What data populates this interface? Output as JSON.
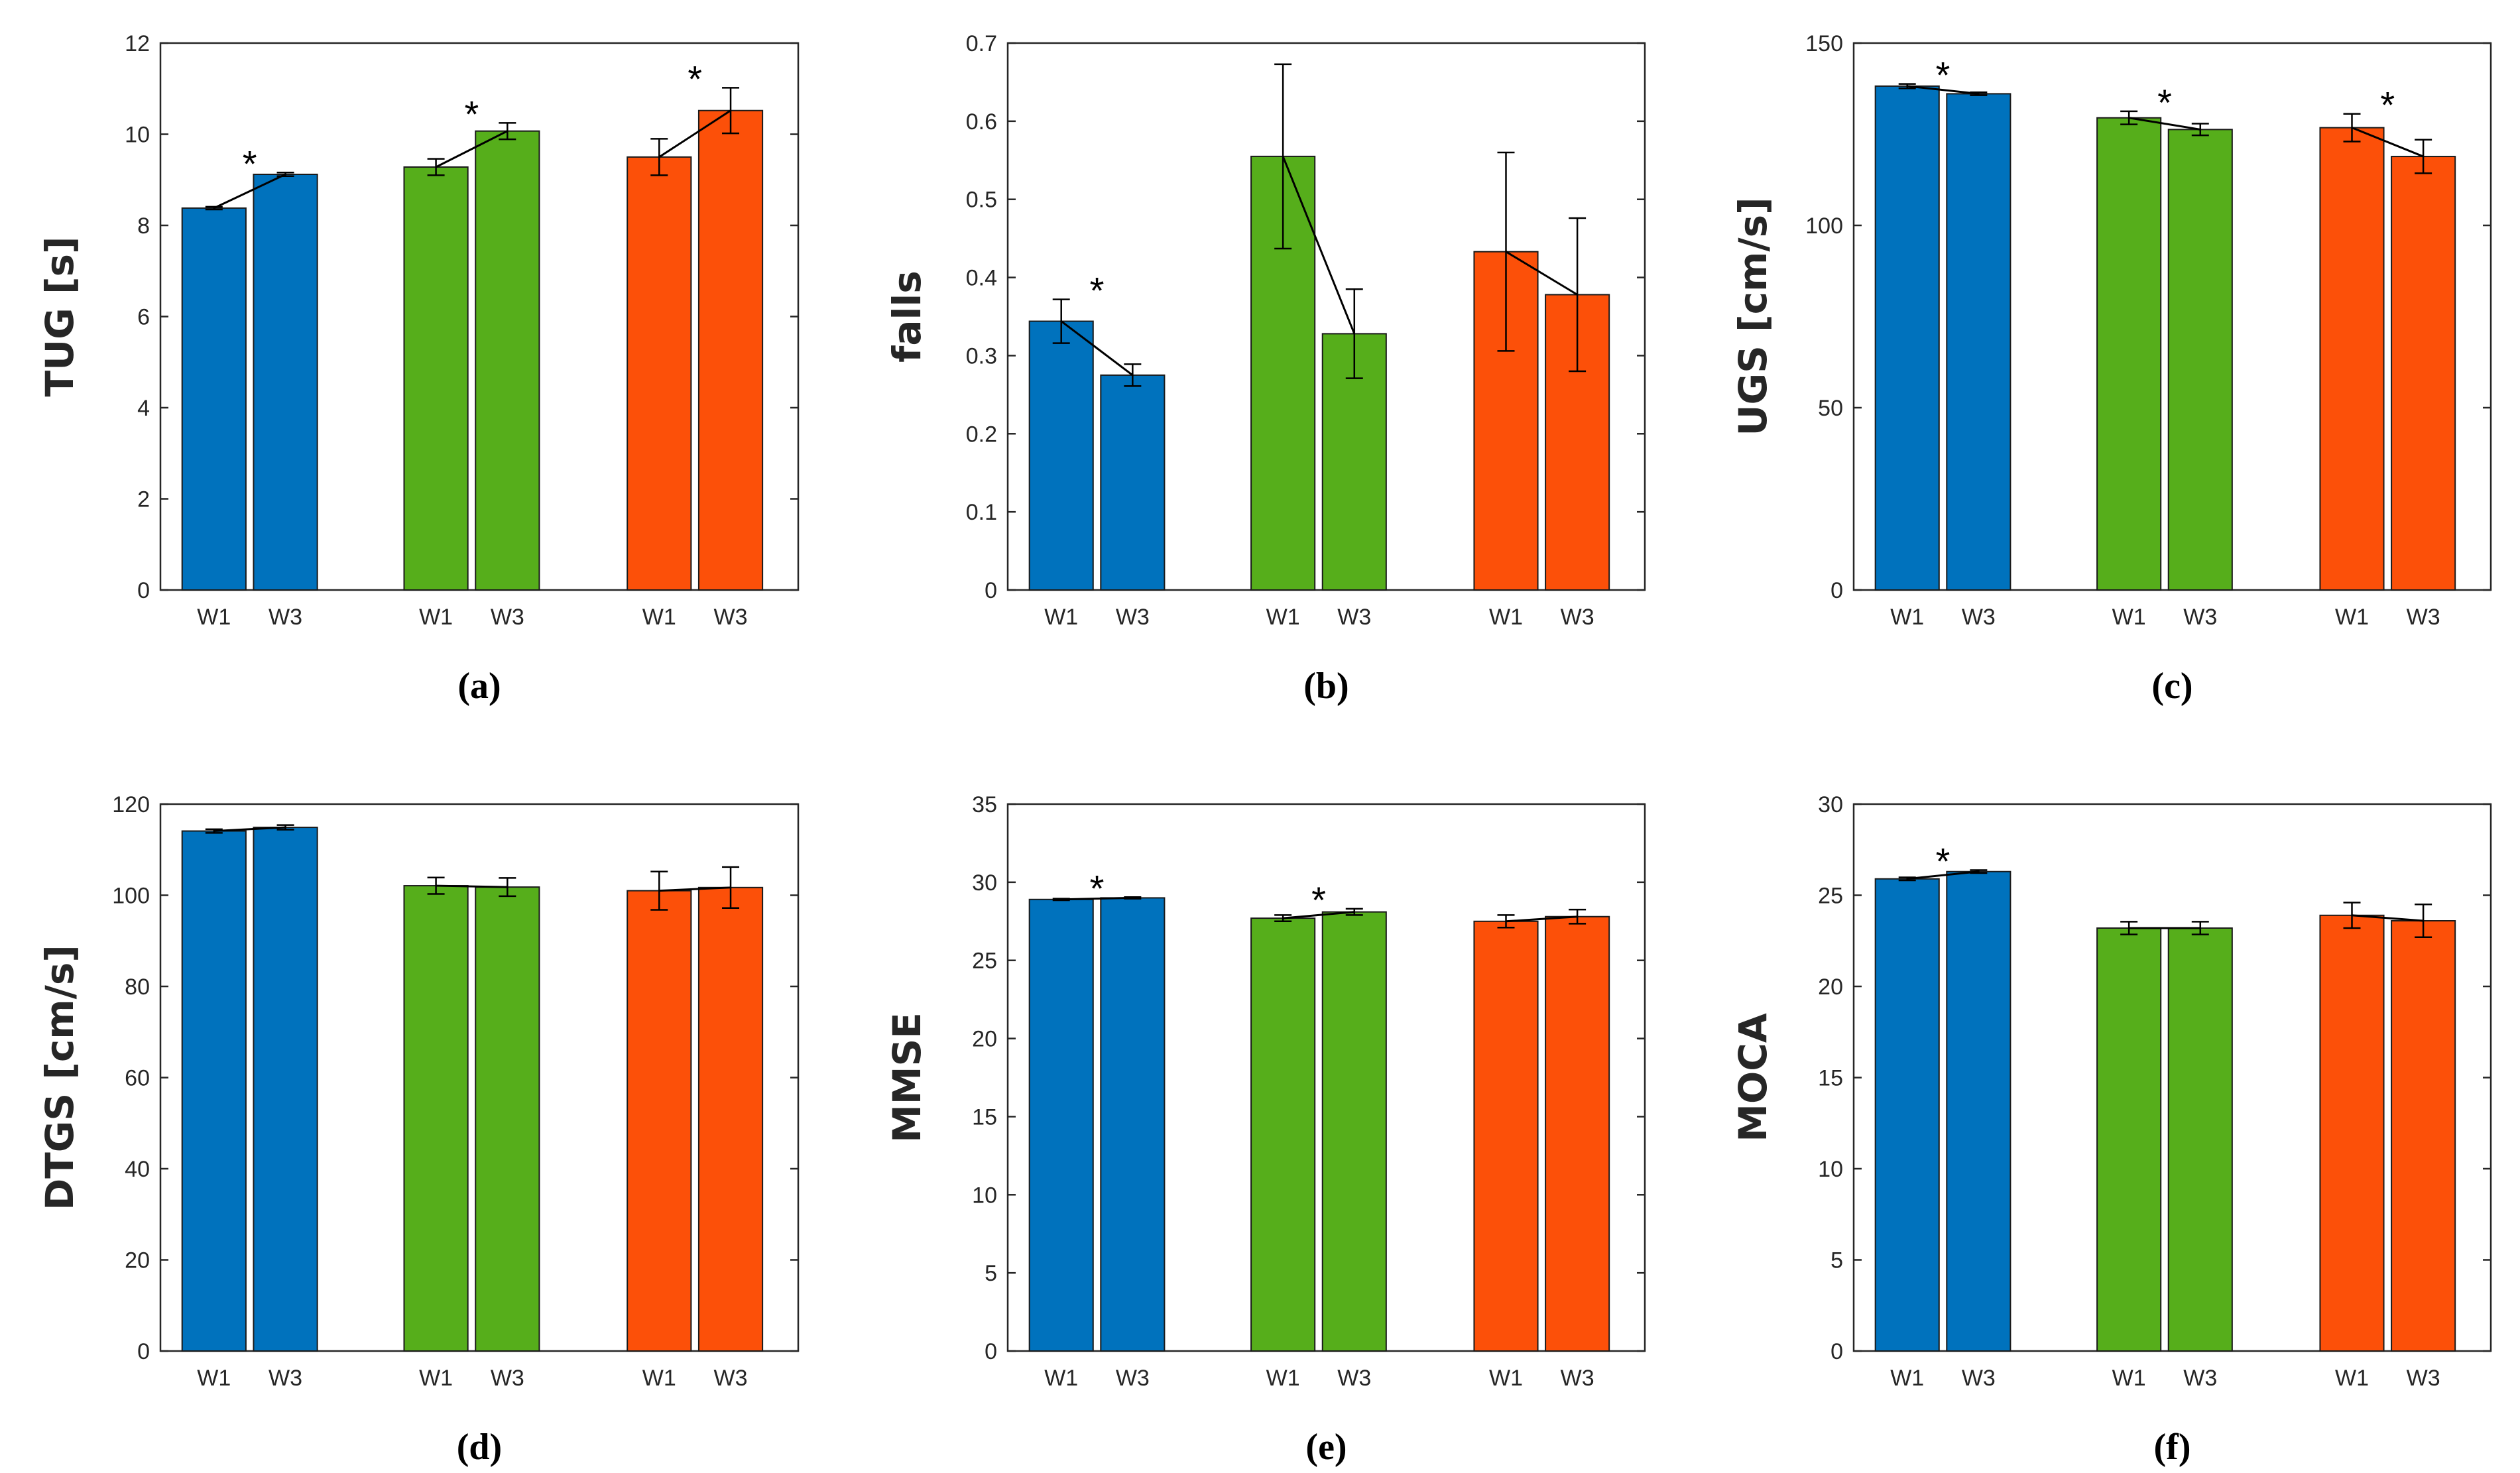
{
  "colors": {
    "group1": "#0072BD",
    "group2": "#56AE1B",
    "group3": "#FC5009",
    "axis": "#262626",
    "line": "#000000"
  },
  "star_symbol": "*",
  "chart_data": [
    {
      "type": "bar",
      "caption": "(a)",
      "ylabel": "TUG [s]",
      "ylim": [
        0,
        12
      ],
      "yticks": [
        0,
        2,
        4,
        6,
        8,
        10,
        12
      ],
      "categories": [
        "W1",
        "W3",
        "W1",
        "W3",
        "W1",
        "W3"
      ],
      "groups": [
        {
          "w1": 8.38,
          "w3": 9.12,
          "err1": 0.03,
          "err3": 0.04,
          "star": true
        },
        {
          "w1": 9.28,
          "w3": 10.07,
          "err1": 0.18,
          "err3": 0.18,
          "star": true
        },
        {
          "w1": 9.5,
          "w3": 10.52,
          "err1": 0.4,
          "err3": 0.5,
          "star": true
        }
      ]
    },
    {
      "type": "bar",
      "caption": "(b)",
      "ylabel": "falls",
      "ylim": [
        0,
        0.7
      ],
      "yticks": [
        0,
        0.1,
        0.2,
        0.3,
        0.4,
        0.5,
        0.6,
        0.7
      ],
      "categories": [
        "W1",
        "W3",
        "W1",
        "W3",
        "W1",
        "W3"
      ],
      "groups": [
        {
          "w1": 0.344,
          "w3": 0.275,
          "err1": 0.028,
          "err3": 0.014,
          "star": true
        },
        {
          "w1": 0.555,
          "w3": 0.328,
          "err1": 0.118,
          "err3": 0.057,
          "star": false
        },
        {
          "w1": 0.433,
          "w3": 0.378,
          "err1": 0.127,
          "err3": 0.098,
          "star": false
        }
      ]
    },
    {
      "type": "bar",
      "caption": "(c)",
      "ylabel": "UGS [cm/s]",
      "ylim": [
        0,
        150
      ],
      "yticks": [
        0,
        50,
        100,
        150
      ],
      "categories": [
        "W1",
        "W3",
        "W1",
        "W3",
        "W1",
        "W3"
      ],
      "groups": [
        {
          "w1": 138.2,
          "w3": 136.1,
          "err1": 0.6,
          "err3": 0.4,
          "star": true
        },
        {
          "w1": 129.5,
          "w3": 126.3,
          "err1": 1.8,
          "err3": 1.6,
          "star": true
        },
        {
          "w1": 126.8,
          "w3": 118.9,
          "err1": 3.8,
          "err3": 4.6,
          "star": true
        }
      ]
    },
    {
      "type": "bar",
      "caption": "(d)",
      "ylabel": "DTGS [cm/s]",
      "ylim": [
        0,
        120
      ],
      "yticks": [
        0,
        20,
        40,
        60,
        80,
        100,
        120
      ],
      "categories": [
        "W1",
        "W3",
        "W1",
        "W3",
        "W1",
        "W3"
      ],
      "groups": [
        {
          "w1": 114.1,
          "w3": 114.9,
          "err1": 0.4,
          "err3": 0.5,
          "star": false
        },
        {
          "w1": 102.1,
          "w3": 101.8,
          "err1": 1.8,
          "err3": 2.0,
          "star": false
        },
        {
          "w1": 101.0,
          "w3": 101.7,
          "err1": 4.2,
          "err3": 4.5,
          "star": false
        }
      ]
    },
    {
      "type": "bar",
      "caption": "(e)",
      "ylabel": "MMSE",
      "ylim": [
        0,
        35
      ],
      "yticks": [
        0,
        5,
        10,
        15,
        20,
        25,
        30,
        35
      ],
      "categories": [
        "W1",
        "W3",
        "W1",
        "W3",
        "W1",
        "W3"
      ],
      "groups": [
        {
          "w1": 28.9,
          "w3": 29.0,
          "err1": 0.05,
          "err3": 0.05,
          "star": true
        },
        {
          "w1": 27.7,
          "w3": 28.1,
          "err1": 0.2,
          "err3": 0.2,
          "star": true
        },
        {
          "w1": 27.5,
          "w3": 27.8,
          "err1": 0.4,
          "err3": 0.45,
          "star": false
        }
      ]
    },
    {
      "type": "bar",
      "caption": "(f)",
      "ylabel": "MOCA",
      "ylim": [
        0,
        30
      ],
      "yticks": [
        0,
        5,
        10,
        15,
        20,
        25,
        30
      ],
      "categories": [
        "W1",
        "W3",
        "W1",
        "W3",
        "W1",
        "W3"
      ],
      "groups": [
        {
          "w1": 25.9,
          "w3": 26.3,
          "err1": 0.08,
          "err3": 0.08,
          "star": true
        },
        {
          "w1": 23.2,
          "w3": 23.2,
          "err1": 0.35,
          "err3": 0.35,
          "star": false
        },
        {
          "w1": 23.9,
          "w3": 23.6,
          "err1": 0.7,
          "err3": 0.9,
          "star": false
        }
      ]
    }
  ]
}
